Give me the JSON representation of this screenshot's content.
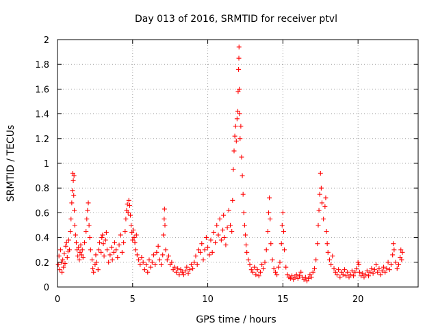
{
  "chart_data": {
    "type": "scatter",
    "title": "Day 013 of 2016, SRMTID for receiver ptvl",
    "xlabel": "GPS time / hours",
    "ylabel": "SRMTID / TECUs",
    "xlim": [
      0,
      24
    ],
    "ylim": [
      0,
      2
    ],
    "xticks": [
      0,
      5,
      10,
      15,
      20
    ],
    "yticks": [
      0,
      0.2,
      0.4,
      0.6,
      0.8,
      1,
      1.2,
      1.4,
      1.6,
      1.8,
      2
    ],
    "xtick_labels": [
      "0",
      "5",
      "10",
      "15",
      "20"
    ],
    "ytick_labels": [
      "0",
      "0.2",
      "0.4",
      "0.6",
      "0.8",
      "1",
      "1.2",
      "1.4",
      "1.6",
      "1.8",
      "2"
    ],
    "grid": true,
    "marker": "plus",
    "color": "#ff0000",
    "series": [
      {
        "name": "SRMTID",
        "points": [
          [
            0.05,
            0.18
          ],
          [
            0.1,
            0.25
          ],
          [
            0.15,
            0.14
          ],
          [
            0.2,
            0.3
          ],
          [
            0.25,
            0.2
          ],
          [
            0.3,
            0.12
          ],
          [
            0.35,
            0.22
          ],
          [
            0.4,
            0.16
          ],
          [
            0.45,
            0.27
          ],
          [
            0.5,
            0.19
          ],
          [
            0.55,
            0.33
          ],
          [
            0.6,
            0.36
          ],
          [
            0.65,
            0.24
          ],
          [
            0.7,
            0.29
          ],
          [
            0.75,
            0.38
          ],
          [
            0.8,
            0.3
          ],
          [
            0.85,
            0.45
          ],
          [
            0.9,
            0.55
          ],
          [
            0.95,
            0.68
          ],
          [
            1.0,
            0.78
          ],
          [
            1.02,
            0.92
          ],
          [
            1.05,
            0.86
          ],
          [
            1.08,
            0.74
          ],
          [
            1.1,
            0.9
          ],
          [
            1.12,
            0.62
          ],
          [
            1.15,
            0.5
          ],
          [
            1.2,
            0.42
          ],
          [
            1.25,
            0.36
          ],
          [
            1.3,
            0.3
          ],
          [
            1.35,
            0.25
          ],
          [
            1.4,
            0.32
          ],
          [
            1.45,
            0.22
          ],
          [
            1.5,
            0.28
          ],
          [
            1.55,
            0.34
          ],
          [
            1.6,
            0.26
          ],
          [
            1.65,
            0.3
          ],
          [
            1.7,
            0.24
          ],
          [
            1.8,
            0.36
          ],
          [
            1.9,
            0.45
          ],
          [
            1.95,
            0.55
          ],
          [
            2.0,
            0.62
          ],
          [
            2.05,
            0.68
          ],
          [
            2.1,
            0.5
          ],
          [
            2.15,
            0.4
          ],
          [
            2.2,
            0.3
          ],
          [
            2.3,
            0.22
          ],
          [
            2.35,
            0.15
          ],
          [
            2.4,
            0.12
          ],
          [
            2.5,
            0.18
          ],
          [
            2.55,
            0.26
          ],
          [
            2.6,
            0.2
          ],
          [
            2.7,
            0.14
          ],
          [
            2.75,
            0.3
          ],
          [
            2.8,
            0.36
          ],
          [
            2.9,
            0.28
          ],
          [
            2.95,
            0.4
          ],
          [
            3.0,
            0.42
          ],
          [
            3.05,
            0.35
          ],
          [
            3.1,
            0.25
          ],
          [
            3.2,
            0.38
          ],
          [
            3.25,
            0.44
          ],
          [
            3.3,
            0.3
          ],
          [
            3.4,
            0.2
          ],
          [
            3.5,
            0.26
          ],
          [
            3.6,
            0.32
          ],
          [
            3.65,
            0.22
          ],
          [
            3.75,
            0.28
          ],
          [
            3.8,
            0.36
          ],
          [
            3.9,
            0.3
          ],
          [
            4.0,
            0.24
          ],
          [
            4.1,
            0.34
          ],
          [
            4.2,
            0.42
          ],
          [
            4.3,
            0.28
          ],
          [
            4.4,
            0.36
          ],
          [
            4.5,
            0.45
          ],
          [
            4.55,
            0.55
          ],
          [
            4.6,
            0.62
          ],
          [
            4.65,
            0.67
          ],
          [
            4.7,
            0.6
          ],
          [
            4.75,
            0.7
          ],
          [
            4.8,
            0.66
          ],
          [
            4.85,
            0.58
          ],
          [
            4.9,
            0.5
          ],
          [
            4.95,
            0.44
          ],
          [
            5.0,
            0.38
          ],
          [
            5.05,
            0.46
          ],
          [
            5.1,
            0.4
          ],
          [
            5.15,
            0.36
          ],
          [
            5.2,
            0.3
          ],
          [
            5.25,
            0.42
          ],
          [
            5.3,
            0.26
          ],
          [
            5.4,
            0.22
          ],
          [
            5.5,
            0.18
          ],
          [
            5.6,
            0.24
          ],
          [
            5.7,
            0.2
          ],
          [
            5.8,
            0.14
          ],
          [
            5.9,
            0.18
          ],
          [
            6.0,
            0.12
          ],
          [
            6.1,
            0.22
          ],
          [
            6.2,
            0.16
          ],
          [
            6.3,
            0.2
          ],
          [
            6.4,
            0.26
          ],
          [
            6.5,
            0.18
          ],
          [
            6.6,
            0.28
          ],
          [
            6.7,
            0.33
          ],
          [
            6.8,
            0.22
          ],
          [
            6.9,
            0.18
          ],
          [
            7.0,
            0.26
          ],
          [
            7.05,
            0.42
          ],
          [
            7.1,
            0.55
          ],
          [
            7.12,
            0.63
          ],
          [
            7.15,
            0.5
          ],
          [
            7.2,
            0.3
          ],
          [
            7.3,
            0.22
          ],
          [
            7.4,
            0.25
          ],
          [
            7.5,
            0.18
          ],
          [
            7.6,
            0.2
          ],
          [
            7.7,
            0.14
          ],
          [
            7.8,
            0.16
          ],
          [
            7.9,
            0.12
          ],
          [
            8.0,
            0.15
          ],
          [
            8.1,
            0.1
          ],
          [
            8.2,
            0.14
          ],
          [
            8.3,
            0.12
          ],
          [
            8.4,
            0.1
          ],
          [
            8.5,
            0.13
          ],
          [
            8.6,
            0.16
          ],
          [
            8.7,
            0.11
          ],
          [
            8.8,
            0.14
          ],
          [
            8.9,
            0.18
          ],
          [
            9.0,
            0.15
          ],
          [
            9.1,
            0.2
          ],
          [
            9.2,
            0.25
          ],
          [
            9.3,
            0.18
          ],
          [
            9.4,
            0.3
          ],
          [
            9.5,
            0.28
          ],
          [
            9.6,
            0.35
          ],
          [
            9.7,
            0.22
          ],
          [
            9.8,
            0.3
          ],
          [
            9.9,
            0.4
          ],
          [
            10.0,
            0.32
          ],
          [
            10.1,
            0.26
          ],
          [
            10.2,
            0.38
          ],
          [
            10.3,
            0.28
          ],
          [
            10.4,
            0.44
          ],
          [
            10.5,
            0.36
          ],
          [
            10.6,
            0.5
          ],
          [
            10.7,
            0.42
          ],
          [
            10.8,
            0.55
          ],
          [
            10.9,
            0.38
          ],
          [
            11.0,
            0.46
          ],
          [
            11.05,
            0.58
          ],
          [
            11.1,
            0.4
          ],
          [
            11.2,
            0.34
          ],
          [
            11.3,
            0.48
          ],
          [
            11.4,
            0.62
          ],
          [
            11.5,
            0.5
          ],
          [
            11.6,
            0.45
          ],
          [
            11.65,
            0.7
          ],
          [
            11.7,
            0.95
          ],
          [
            11.75,
            1.1
          ],
          [
            11.8,
            1.22
          ],
          [
            11.85,
            1.3
          ],
          [
            11.9,
            1.18
          ],
          [
            11.95,
            1.36
          ],
          [
            12.0,
            1.42
          ],
          [
            12.02,
            1.58
          ],
          [
            12.05,
            1.76
          ],
          [
            12.07,
            1.85
          ],
          [
            12.08,
            1.94
          ],
          [
            12.1,
            1.6
          ],
          [
            12.12,
            1.4
          ],
          [
            12.15,
            1.2
          ],
          [
            12.2,
            1.3
          ],
          [
            12.25,
            1.05
          ],
          [
            12.3,
            0.9
          ],
          [
            12.35,
            0.75
          ],
          [
            12.4,
            0.6
          ],
          [
            12.45,
            0.5
          ],
          [
            12.5,
            0.42
          ],
          [
            12.55,
            0.34
          ],
          [
            12.6,
            0.28
          ],
          [
            12.7,
            0.22
          ],
          [
            12.8,
            0.18
          ],
          [
            12.9,
            0.14
          ],
          [
            13.0,
            0.12
          ],
          [
            13.1,
            0.16
          ],
          [
            13.2,
            0.1
          ],
          [
            13.3,
            0.14
          ],
          [
            13.4,
            0.09
          ],
          [
            13.5,
            0.12
          ],
          [
            13.6,
            0.18
          ],
          [
            13.7,
            0.15
          ],
          [
            13.8,
            0.2
          ],
          [
            13.9,
            0.3
          ],
          [
            14.0,
            0.45
          ],
          [
            14.05,
            0.6
          ],
          [
            14.1,
            0.72
          ],
          [
            14.15,
            0.55
          ],
          [
            14.2,
            0.35
          ],
          [
            14.3,
            0.22
          ],
          [
            14.4,
            0.15
          ],
          [
            14.5,
            0.12
          ],
          [
            14.6,
            0.1
          ],
          [
            14.7,
            0.16
          ],
          [
            14.8,
            0.2
          ],
          [
            14.9,
            0.35
          ],
          [
            14.95,
            0.5
          ],
          [
            15.0,
            0.6
          ],
          [
            15.05,
            0.45
          ],
          [
            15.1,
            0.3
          ],
          [
            15.2,
            0.16
          ],
          [
            15.3,
            0.1
          ],
          [
            15.4,
            0.08
          ],
          [
            15.5,
            0.07
          ],
          [
            15.6,
            0.09
          ],
          [
            15.7,
            0.06
          ],
          [
            15.8,
            0.08
          ],
          [
            15.9,
            0.1
          ],
          [
            16.0,
            0.07
          ],
          [
            16.1,
            0.09
          ],
          [
            16.2,
            0.12
          ],
          [
            16.3,
            0.08
          ],
          [
            16.4,
            0.06
          ],
          [
            16.5,
            0.08
          ],
          [
            16.6,
            0.05
          ],
          [
            16.7,
            0.07
          ],
          [
            16.8,
            0.1
          ],
          [
            16.9,
            0.08
          ],
          [
            17.0,
            0.12
          ],
          [
            17.1,
            0.15
          ],
          [
            17.2,
            0.22
          ],
          [
            17.3,
            0.35
          ],
          [
            17.35,
            0.5
          ],
          [
            17.4,
            0.62
          ],
          [
            17.45,
            0.75
          ],
          [
            17.5,
            0.92
          ],
          [
            17.55,
            0.8
          ],
          [
            17.6,
            0.68
          ],
          [
            17.7,
            0.55
          ],
          [
            17.8,
            0.65
          ],
          [
            17.85,
            0.72
          ],
          [
            17.9,
            0.45
          ],
          [
            17.95,
            0.35
          ],
          [
            18.0,
            0.28
          ],
          [
            18.1,
            0.22
          ],
          [
            18.2,
            0.18
          ],
          [
            18.3,
            0.25
          ],
          [
            18.4,
            0.15
          ],
          [
            18.5,
            0.12
          ],
          [
            18.6,
            0.1
          ],
          [
            18.7,
            0.14
          ],
          [
            18.8,
            0.08
          ],
          [
            18.9,
            0.12
          ],
          [
            19.0,
            0.1
          ],
          [
            19.1,
            0.14
          ],
          [
            19.2,
            0.09
          ],
          [
            19.3,
            0.12
          ],
          [
            19.4,
            0.08
          ],
          [
            19.5,
            0.1
          ],
          [
            19.6,
            0.13
          ],
          [
            19.7,
            0.09
          ],
          [
            19.8,
            0.12
          ],
          [
            19.9,
            0.15
          ],
          [
            20.0,
            0.2
          ],
          [
            20.05,
            0.18
          ],
          [
            20.1,
            0.12
          ],
          [
            20.2,
            0.09
          ],
          [
            20.3,
            0.11
          ],
          [
            20.4,
            0.08
          ],
          [
            20.5,
            0.1
          ],
          [
            20.6,
            0.13
          ],
          [
            20.7,
            0.09
          ],
          [
            20.8,
            0.12
          ],
          [
            20.9,
            0.15
          ],
          [
            21.0,
            0.11
          ],
          [
            21.1,
            0.14
          ],
          [
            21.2,
            0.18
          ],
          [
            21.3,
            0.12
          ],
          [
            21.4,
            0.15
          ],
          [
            21.5,
            0.1
          ],
          [
            21.6,
            0.13
          ],
          [
            21.7,
            0.16
          ],
          [
            21.8,
            0.12
          ],
          [
            21.9,
            0.15
          ],
          [
            22.0,
            0.2
          ],
          [
            22.1,
            0.14
          ],
          [
            22.2,
            0.18
          ],
          [
            22.3,
            0.26
          ],
          [
            22.35,
            0.35
          ],
          [
            22.4,
            0.3
          ],
          [
            22.5,
            0.2
          ],
          [
            22.6,
            0.15
          ],
          [
            22.7,
            0.18
          ],
          [
            22.8,
            0.24
          ],
          [
            22.85,
            0.3
          ],
          [
            22.9,
            0.22
          ],
          [
            22.95,
            0.28
          ]
        ]
      }
    ]
  }
}
